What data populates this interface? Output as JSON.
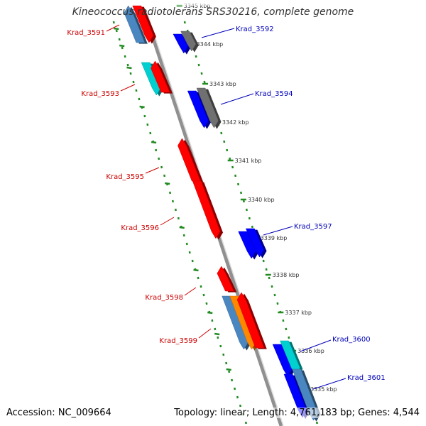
{
  "title": "Kineococcus radiotolerans SRS30216, complete genome",
  "accession": "Accession: NC_009664",
  "topology": "Topology: linear; Length: 4,761,183 bp; Genes: 4,544",
  "colors": {
    "red": "#ff0000",
    "blue": "#0000ff",
    "gray": "#707070",
    "cyan": "#00d0d0",
    "steelblue": "#4a86c0",
    "orange": "#ff8800",
    "ruler_green": "#228b22",
    "left_label": "#cc0000",
    "right_label": "#0000bb"
  },
  "kbp_ticks": [
    "3345 kbp",
    "3344 kbp",
    "3343 kbp",
    "3342 kbp",
    "3341 kbp",
    "3340 kbp",
    "3339 kbp",
    "3338 kbp",
    "3337 kbp",
    "3336 kbp",
    "3335 kbp"
  ],
  "left_labels": [
    "Krad_3591",
    "Krad_3593",
    "Krad_3595",
    "Krad_3596",
    "Krad_3598",
    "Krad_3599"
  ],
  "right_labels": [
    "Krad_3592",
    "Krad_3594",
    "Krad_3597",
    "Krad_3600",
    "Krad_3601"
  ]
}
